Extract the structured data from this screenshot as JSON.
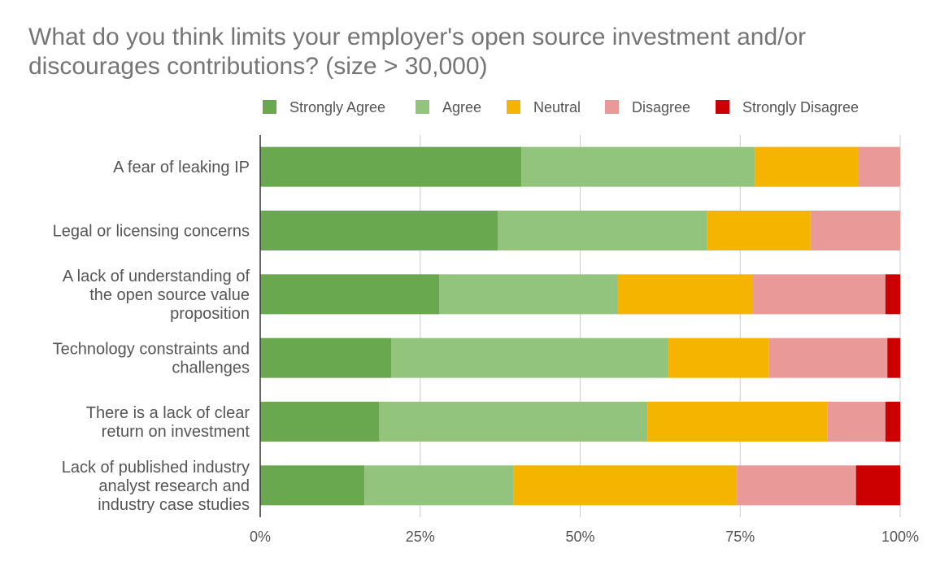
{
  "chart_data": {
    "type": "bar",
    "orientation": "horizontal",
    "stacked": "percent",
    "title": "What do you think limits your employer's open source investment and/or discourages contributions? (size > 30,000)",
    "categories": [
      "A fear of leaking IP",
      "Legal or licensing concerns",
      "A lack of understanding of the open source value proposition",
      "Technology constraints and challenges",
      "There is a lack of clear return on investment",
      "Lack of published industry analyst research and industry case studies"
    ],
    "category_lines": [
      [
        "A fear of leaking IP"
      ],
      [
        "Legal or licensing concerns"
      ],
      [
        "A lack of understanding of",
        "the open source value",
        "proposition"
      ],
      [
        "Technology constraints and",
        "challenges"
      ],
      [
        "There is a lack of clear",
        "return on investment"
      ],
      [
        "Lack of published industry",
        "analyst research and",
        "industry case studies"
      ]
    ],
    "series": [
      {
        "name": "Strongly Agree",
        "color": "#6aa84f",
        "values": [
          40.8,
          37.1,
          28.0,
          20.5,
          18.6,
          16.3
        ]
      },
      {
        "name": "Agree",
        "color": "#93c47d",
        "values": [
          36.5,
          32.7,
          27.9,
          43.3,
          41.9,
          23.3
        ]
      },
      {
        "name": "Neutral",
        "color": "#f4b400",
        "values": [
          16.1,
          16.2,
          21.1,
          15.7,
          28.1,
          34.9
        ]
      },
      {
        "name": "Disagree",
        "color": "#ea9999",
        "values": [
          6.6,
          14.0,
          20.7,
          18.5,
          9.1,
          18.6
        ]
      },
      {
        "name": "Strongly Disagree",
        "color": "#cc0000",
        "values": [
          0,
          0,
          2.3,
          2.0,
          2.3,
          6.9
        ]
      }
    ],
    "xlim": [
      0,
      100
    ],
    "x_ticks": [
      "0%",
      "25%",
      "50%",
      "75%",
      "100%"
    ],
    "grid": true,
    "legend_position": "top"
  }
}
